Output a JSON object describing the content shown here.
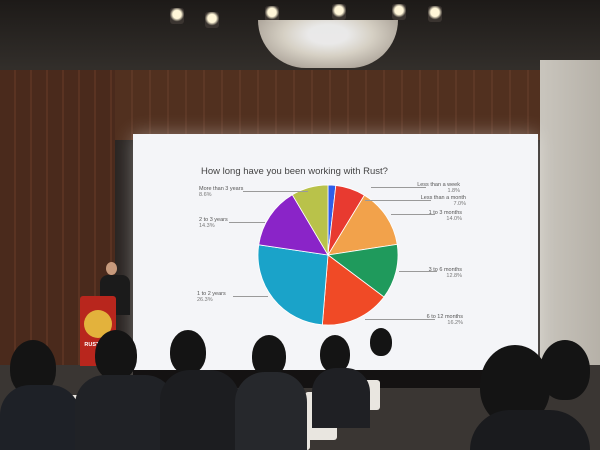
{
  "slide": {
    "title": "How long have you been working with Rust?",
    "slices": [
      {
        "label": "Less than a week",
        "pct": "1.8%",
        "value": 1.8,
        "color": "#2f5ee8"
      },
      {
        "label": "Less than a month",
        "pct": "7.0%",
        "value": 7.0,
        "color": "#e83a30"
      },
      {
        "label": "1 to 3 months",
        "pct": "14.0%",
        "value": 14.0,
        "color": "#f2a24b"
      },
      {
        "label": "3 to 6 months",
        "pct": "12.8%",
        "value": 12.8,
        "color": "#1f9a5c"
      },
      {
        "label": "6 to 12 months",
        "pct": "16.2%",
        "value": 16.2,
        "color": "#f04a26"
      },
      {
        "label": "1 to 2 years",
        "pct": "26.3%",
        "value": 26.3,
        "color": "#1aa3c9"
      },
      {
        "label": "2 to 3 years",
        "pct": "14.3%",
        "value": 14.3,
        "color": "#8a24c8"
      },
      {
        "label": "More than 3 years",
        "pct": "8.6%",
        "value": 8.6,
        "color": "#b9c24a"
      }
    ]
  },
  "podium": {
    "text": "RUSTCON"
  }
}
